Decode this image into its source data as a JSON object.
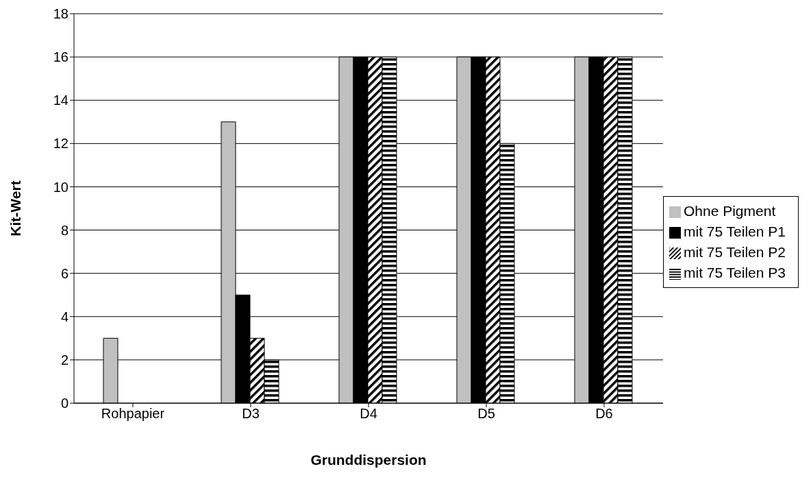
{
  "chart_data": {
    "type": "bar",
    "xlabel": "Grunddispersion",
    "ylabel": "Kit-Wert",
    "categories": [
      "Rohpapier",
      "D3",
      "D4",
      "D5",
      "D6"
    ],
    "series": [
      {
        "name": "Ohne Pigment",
        "color": "#c0c0c0",
        "values": [
          3,
          13,
          16,
          16,
          16
        ]
      },
      {
        "name": "mit 75 Teilen P1",
        "color": "#000000",
        "values": [
          0,
          5,
          16,
          16,
          16
        ]
      },
      {
        "name": "mit 75 Teilen P2",
        "color": "#000000",
        "values": [
          0,
          3,
          16,
          16,
          16
        ]
      },
      {
        "name": "mit 75 Teilen P3",
        "color": "#000000",
        "values": [
          0,
          2,
          16,
          12,
          16
        ]
      }
    ],
    "ylim": [
      0,
      18
    ],
    "yticks": [
      0,
      2,
      4,
      6,
      8,
      10,
      12,
      14,
      16,
      18
    ],
    "grid": "y",
    "legend": "right"
  }
}
